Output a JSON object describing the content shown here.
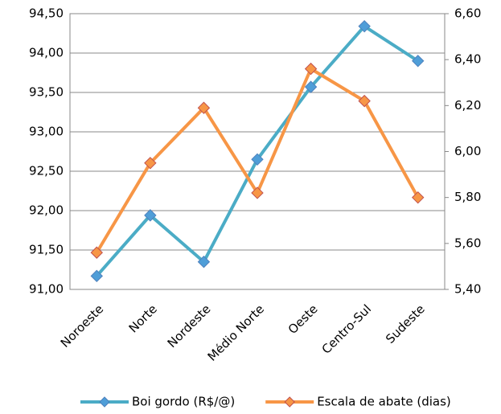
{
  "chart_data": {
    "type": "line",
    "categories": [
      "Noroeste",
      "Norte",
      "Nordeste",
      "Médio Norte",
      "Oeste",
      "Centro-Sul",
      "Sudeste"
    ],
    "series": [
      {
        "name": "Boi gordo (R$/@)",
        "color": "#4bacc6",
        "marker_color": "#4f9ed8",
        "marker_edge": "#4f81bd",
        "values": [
          91.17,
          91.94,
          91.35,
          92.65,
          93.57,
          94.34,
          93.9
        ]
      },
      {
        "name": "Escala de abate (dias)",
        "color": "#f79646",
        "marker_color": "#f79646",
        "marker_edge": "#c0504d",
        "axis": "y2",
        "values": [
          5.56,
          5.95,
          6.19,
          5.82,
          6.36,
          6.22,
          5.8
        ]
      }
    ],
    "ylim": [
      91.0,
      94.5
    ],
    "yticks": [
      {
        "value": 91.0,
        "label": "91,00"
      },
      {
        "value": 91.5,
        "label": "91,50"
      },
      {
        "value": 92.0,
        "label": "92,00"
      },
      {
        "value": 92.5,
        "label": "92,50"
      },
      {
        "value": 93.0,
        "label": "93,00"
      },
      {
        "value": 93.5,
        "label": "93,50"
      },
      {
        "value": 94.0,
        "label": "94,00"
      },
      {
        "value": 94.5,
        "label": "94,50"
      }
    ],
    "y2lim": [
      5.4,
      6.6
    ],
    "y2ticks": [
      {
        "value": 5.4,
        "label": "5,40"
      },
      {
        "value": 5.6,
        "label": "5,60"
      },
      {
        "value": 5.8,
        "label": "5,80"
      },
      {
        "value": 6.0,
        "label": "6,00"
      },
      {
        "value": 6.2,
        "label": "6,20"
      },
      {
        "value": 6.4,
        "label": "6,40"
      },
      {
        "value": 6.6,
        "label": "6,60"
      }
    ],
    "grid": true,
    "legend": "bottom"
  }
}
